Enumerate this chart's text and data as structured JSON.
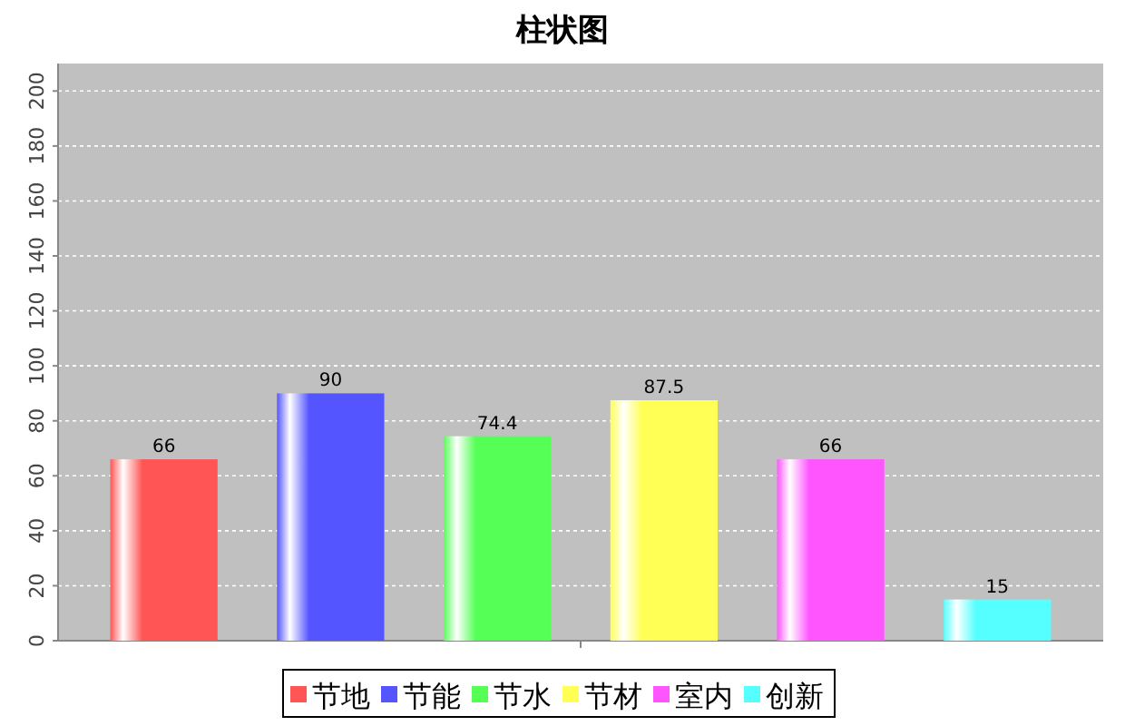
{
  "chart_data": {
    "type": "bar",
    "title": "柱状图",
    "categories": [
      null
    ],
    "series": [
      {
        "name": "节地",
        "color": "#ff5555",
        "values": [
          66
        ]
      },
      {
        "name": "节能",
        "color": "#5555ff",
        "values": [
          90
        ]
      },
      {
        "name": "节水",
        "color": "#55ff55",
        "values": [
          74.4
        ]
      },
      {
        "name": "节材",
        "color": "#ffff55",
        "values": [
          87.5
        ]
      },
      {
        "name": "室内",
        "color": "#ff55ff",
        "values": [
          66
        ]
      },
      {
        "name": "创新",
        "color": "#55ffff",
        "values": [
          15
        ]
      }
    ],
    "ylim": [
      0,
      210
    ],
    "yticks": [
      0,
      20,
      40,
      60,
      80,
      100,
      120,
      140,
      160,
      180,
      200
    ],
    "grid": "y",
    "legend": "bottom",
    "data_labels": true
  }
}
